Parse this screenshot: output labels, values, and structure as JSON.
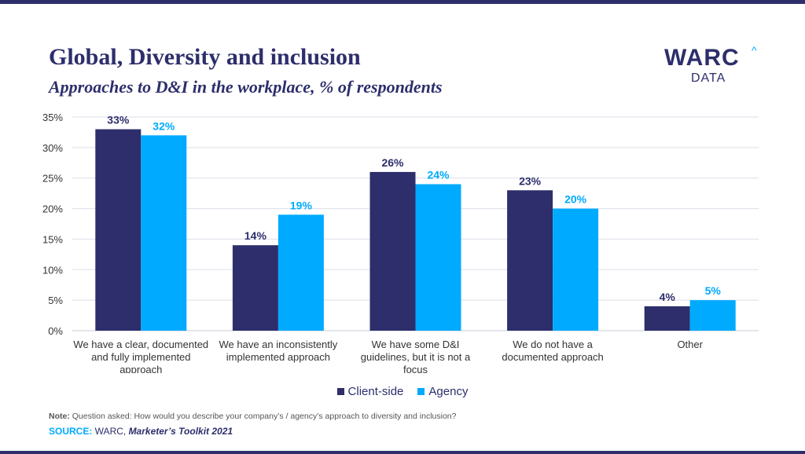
{
  "header": {
    "title": "Global, Diversity and inclusion",
    "subtitle": "Approaches to D&I in the workplace, % of respondents"
  },
  "logo": {
    "main": "WARC",
    "caret": "^",
    "sub": "DATA"
  },
  "colors": {
    "client": "#2d2e6b",
    "agency": "#00aaff",
    "grid": "#dcdfe8",
    "axis_text": "#333333"
  },
  "chart_data": {
    "type": "bar",
    "categories": [
      [
        "We have a clear, documented",
        "and fully implemented",
        "approach"
      ],
      [
        "We have an inconsistently",
        "implemented approach"
      ],
      [
        "We have some D&I",
        "guidelines, but it is not a",
        "focus"
      ],
      [
        "We do not have a",
        "documented approach"
      ],
      [
        "Other"
      ]
    ],
    "series": [
      {
        "name": "Client-side",
        "values": [
          33,
          14,
          26,
          23,
          4
        ],
        "labels": [
          "33%",
          "14%",
          "26%",
          "23%",
          "4%"
        ]
      },
      {
        "name": "Agency",
        "values": [
          32,
          19,
          24,
          20,
          5
        ],
        "labels": [
          "32%",
          "19%",
          "24%",
          "20%",
          "5%"
        ]
      }
    ],
    "ylim": [
      0,
      35
    ],
    "yticks": [
      0,
      5,
      10,
      15,
      20,
      25,
      30,
      35
    ],
    "ytick_labels": [
      "0%",
      "5%",
      "10%",
      "15%",
      "20%",
      "25%",
      "30%",
      "35%"
    ],
    "grid": true,
    "legend_position": "bottom-center"
  },
  "legend": {
    "client_label": "Client-side",
    "agency_label": "Agency"
  },
  "footer": {
    "note_key": "Note:",
    "note_text": " Question asked: How would you describe your company’s / agency’s approach to diversity and inclusion?",
    "source_key": "SOURCE:",
    "source_org": " WARC, ",
    "source_title": "Marketer’s Toolkit 2021"
  }
}
